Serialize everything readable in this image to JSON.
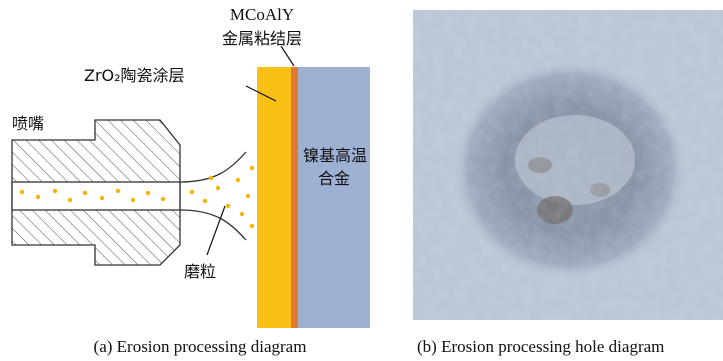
{
  "diagram": {
    "labels": {
      "bond_coat_name": "MCoAlY",
      "bond_coat": "金属粘结层",
      "ceramic_coat": "ZrO₂陶瓷涂层",
      "nozzle": "喷嘴",
      "substrate_line1": "镍基高温",
      "substrate_line2": "合金",
      "particles": "磨粒"
    },
    "captions": {
      "a": "(a) Erosion processing diagram",
      "b": "(b) Erosion processing hole diagram"
    }
  }
}
